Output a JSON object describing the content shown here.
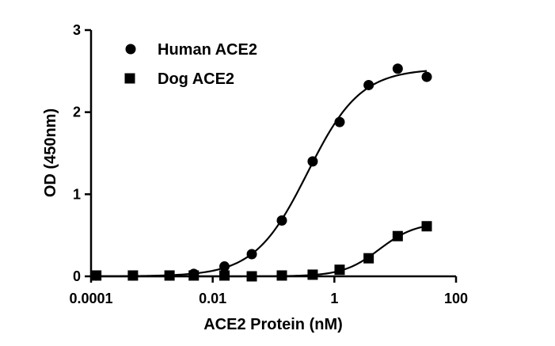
{
  "chart_data": {
    "type": "scatter",
    "x_scale": "log",
    "xlabel": "ACE2 Protein (nM)",
    "ylabel": "OD (450nm)",
    "xlim": [
      0.0001,
      100
    ],
    "ylim": [
      0,
      3
    ],
    "x_ticks": [
      "0.0001",
      "0.01",
      "1",
      "100"
    ],
    "y_ticks": [
      "0",
      "1",
      "2",
      "3"
    ],
    "grid": false,
    "legend_position": "top-left",
    "series": [
      {
        "name": "Human ACE2",
        "marker": "circle",
        "color": "#000000",
        "fit_curve": true,
        "x": [
          0.000122,
          0.000488,
          0.00195,
          0.00488,
          0.0156,
          0.0439,
          0.137,
          0.44,
          1.22,
          3.66,
          11,
          33
        ],
        "y": [
          0.01,
          0.01,
          0.01,
          0.03,
          0.12,
          0.27,
          0.68,
          1.4,
          1.88,
          2.33,
          2.53,
          2.43
        ]
      },
      {
        "name": "Dog ACE2",
        "marker": "square",
        "color": "#000000",
        "fit_curve": true,
        "x": [
          0.000122,
          0.000488,
          0.00195,
          0.00488,
          0.0156,
          0.0439,
          0.137,
          0.44,
          1.22,
          3.66,
          11,
          33
        ],
        "y": [
          0.01,
          0.01,
          0.01,
          0.01,
          0.01,
          0.0,
          0.01,
          0.02,
          0.08,
          0.22,
          0.49,
          0.61
        ]
      }
    ]
  }
}
